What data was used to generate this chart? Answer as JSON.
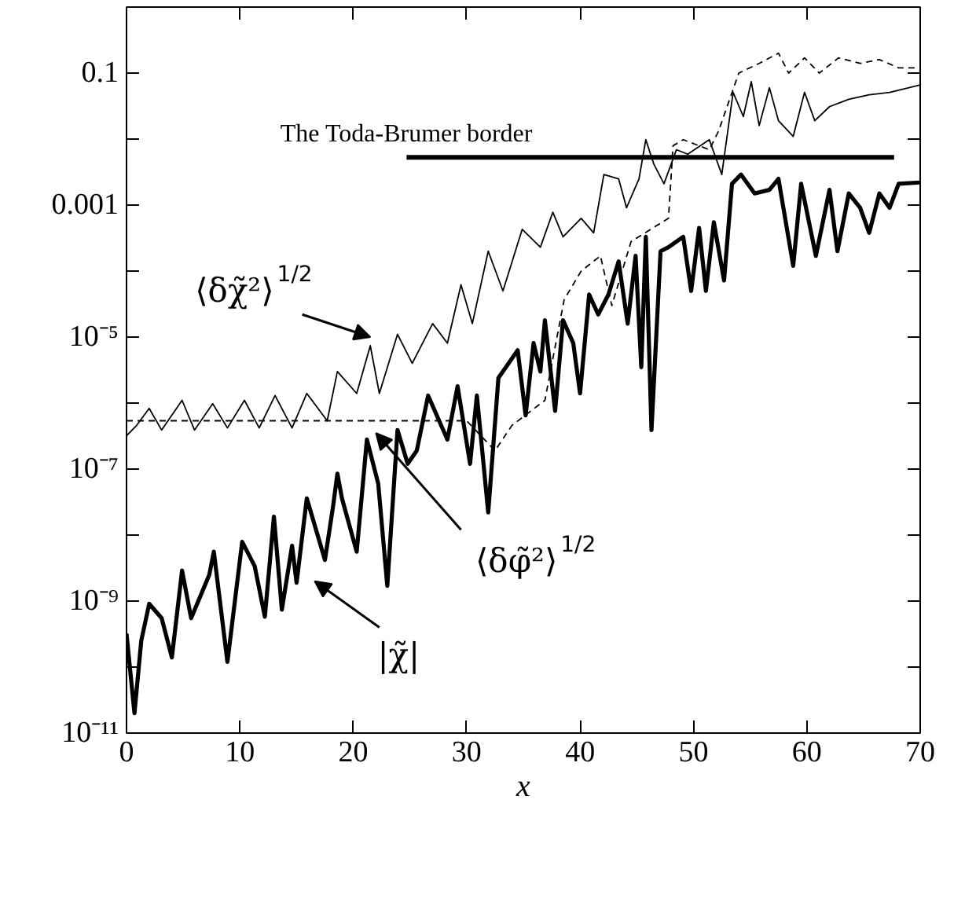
{
  "chart_data": {
    "type": "line",
    "xlabel": "x",
    "log": "y",
    "grid": false,
    "xlim": [
      0,
      70
    ],
    "xticks": [
      0,
      10,
      20,
      30,
      40,
      50,
      60,
      70
    ],
    "ylim": [
      1e-11,
      1
    ],
    "yticks": [
      {
        "value": 1e-11,
        "label": "10⁻¹¹"
      },
      {
        "value": 1e-10,
        "label": null
      },
      {
        "value": 1e-09,
        "label": "10⁻⁹"
      },
      {
        "value": 1e-08,
        "label": null
      },
      {
        "value": 1e-07,
        "label": "10⁻⁷"
      },
      {
        "value": 1e-06,
        "label": null
      },
      {
        "value": 1e-05,
        "label": "10⁻⁵"
      },
      {
        "value": 0.0001,
        "label": null
      },
      0.001,
      {
        "value": 0.01,
        "label": null
      },
      0.1
    ],
    "series": [
      {
        "color": "#000000",
        "line_style": "solid",
        "x": [
          0,
          0.7,
          1.3,
          2.0,
          3.1,
          4.0,
          4.9,
          5.7,
          7.3,
          7.7,
          8.9,
          10.2,
          11.3,
          12.2,
          13.0,
          13.7,
          14.6,
          15.0,
          15.9,
          17.5,
          18.2,
          18.6,
          19.0,
          20.3,
          21.2,
          22.2,
          23.0,
          23.9,
          24.8,
          25.6,
          26.6,
          28.3,
          29.2,
          30.3,
          30.9,
          31.9,
          32.8,
          34.5,
          35.2,
          35.9,
          36.5,
          36.9,
          37.8,
          38.5,
          39.4,
          40.0,
          40.8,
          41.6,
          42.5,
          43.4,
          44.2,
          44.9,
          45.4,
          45.8,
          46.3,
          47.1,
          47.8,
          49.1,
          49.8,
          50.5,
          51.1,
          51.8,
          52.7,
          53.4,
          54.2,
          55.4,
          56.7,
          57.5,
          58.8,
          59.5,
          60.8,
          62.0,
          62.7,
          63.7,
          64.7,
          65.5,
          66.4,
          67.3,
          68.1,
          70.0
        ],
        "values": [
          3.2e-10,
          2e-11,
          2.5e-10,
          9.1e-10,
          5.5e-10,
          1.4e-10,
          2.9e-09,
          5.5e-10,
          2.5e-09,
          5.6e-09,
          1.2e-10,
          7.9e-09,
          3.4e-09,
          5.8e-10,
          1.9e-08,
          7.4e-10,
          6.9e-09,
          1.9e-09,
          3.6e-08,
          4.2e-09,
          2.6e-08,
          8.5e-08,
          3.6e-08,
          5.6e-09,
          2.8e-07,
          6e-08,
          1.7e-09,
          3.9e-07,
          1.2e-07,
          1.9e-07,
          1.3e-06,
          2.8e-07,
          1.8e-06,
          1.2e-07,
          1.3e-06,
          2.2e-08,
          2.4e-06,
          6.3e-06,
          6.5e-07,
          8.1e-06,
          3e-06,
          1.8e-05,
          7.6e-07,
          1.8e-05,
          8.1e-06,
          1.4e-06,
          4.4e-05,
          2.2e-05,
          4.4e-05,
          0.00014,
          1.6e-05,
          0.00017,
          3.5e-06,
          0.00033,
          3.9e-07,
          0.0002,
          0.00023,
          0.00033,
          5e-05,
          0.00045,
          5e-05,
          0.00055,
          7.2e-05,
          0.0021,
          0.0029,
          0.0015,
          0.0017,
          0.0025,
          0.00012,
          0.0021,
          0.00017,
          0.0017,
          0.0002,
          0.0015,
          0.00091,
          0.00038,
          0.0015,
          0.00091,
          0.0021,
          0.0022
        ]
      },
      {
        "color": "#000000",
        "line_style": "solid",
        "x": [
          0,
          0.9,
          2.0,
          3.1,
          4.9,
          6.0,
          7.6,
          8.9,
          10.4,
          11.7,
          13.1,
          14.6,
          15.9,
          17.7,
          18.6,
          20.3,
          21.5,
          22.3,
          23.9,
          25.2,
          27.0,
          28.3,
          29.5,
          30.5,
          31.9,
          33.2,
          34.9,
          36.5,
          37.6,
          38.5,
          40.1,
          41.2,
          42.1,
          43.4,
          44.1,
          45.2,
          45.8,
          46.5,
          47.4,
          48.5,
          49.5,
          51.4,
          52.5,
          53.5,
          54.4,
          55.1,
          55.8,
          56.7,
          57.5,
          58.8,
          59.8,
          60.7,
          62.0,
          63.7,
          65.5,
          67.3,
          70.0
        ],
        "values": [
          3.2e-07,
          4.6e-07,
          8.3e-07,
          3.9e-07,
          1.1e-06,
          3.9e-07,
          9.8e-07,
          4.2e-07,
          1.1e-06,
          4.2e-07,
          1.3e-06,
          4.2e-07,
          1.4e-06,
          5.4e-07,
          3e-06,
          1.4e-06,
          7.4e-06,
          1.4e-06,
          1.1e-05,
          4e-06,
          1.6e-05,
          8.1e-06,
          6.2e-05,
          1.6e-05,
          0.0002,
          5e-05,
          0.00043,
          0.00023,
          0.00078,
          0.00033,
          0.00063,
          0.00038,
          0.0029,
          0.0025,
          0.00091,
          0.0025,
          0.0098,
          0.0042,
          0.0021,
          0.0069,
          0.0059,
          0.0098,
          0.0029,
          0.051,
          0.022,
          0.074,
          0.016,
          0.06,
          0.019,
          0.011,
          0.051,
          0.019,
          0.031,
          0.04,
          0.047,
          0.051,
          0.066
        ]
      },
      {
        "color": "#000000",
        "line_style": "dashed",
        "x": [
          0,
          30.0,
          32.5,
          34.0,
          36.9,
          38.6,
          40.1,
          41.8,
          42.8,
          44.5,
          47.8,
          48.2,
          49.1,
          51.4,
          52.2,
          53.1,
          54.0,
          55.8,
          57.5,
          58.4,
          59.8,
          61.1,
          62.8,
          64.7,
          66.4,
          68.1,
          69.5
        ],
        "values": [
          5.4e-07,
          5.4e-07,
          1.9e-07,
          4.6e-07,
          1.1e-06,
          3.7e-05,
          0.0001,
          0.00017,
          3e-05,
          0.00028,
          0.00063,
          0.0079,
          0.0098,
          0.0069,
          0.013,
          0.036,
          0.1,
          0.14,
          0.2,
          0.1,
          0.17,
          0.1,
          0.17,
          0.14,
          0.16,
          0.12,
          0.12
        ]
      },
      {
        "name": "The Toda-Brumer border",
        "color": "#000000",
        "line_style": "solid",
        "x": [
          24.7,
          67.7
        ],
        "values": [
          0.0053,
          0.0053
        ]
      }
    ],
    "annotations": [
      "⟨δχ̃²⟩$^{1/2}$",
      "⟨δφ̃²⟩$^{1/2}$",
      "|χ̃|"
    ]
  }
}
